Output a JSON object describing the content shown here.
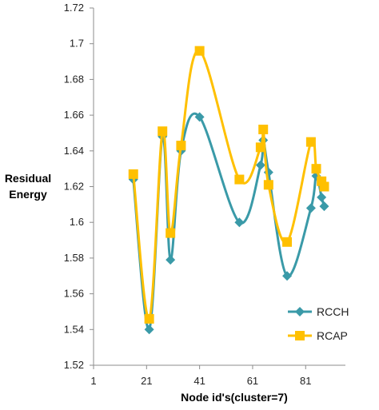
{
  "chart_data": {
    "type": "line",
    "xlabel": "Node id's(cluster=7)",
    "ylabel_lines": [
      "Residual",
      "Energy"
    ],
    "xlim": [
      1,
      96
    ],
    "ylim": [
      1.52,
      1.72
    ],
    "x_ticks": [
      1,
      21,
      41,
      61,
      81
    ],
    "y_ticks": [
      1.52,
      1.54,
      1.56,
      1.58,
      1.6,
      1.62,
      1.64,
      1.66,
      1.68,
      1.7,
      1.72
    ],
    "y_tick_labels": [
      "1.52",
      "1.54",
      "1.56",
      "1.58",
      "1.6",
      "1.62",
      "1.64",
      "1.66",
      "1.68",
      "1.7",
      "1.72"
    ],
    "grid": false,
    "legend_position": "bottom-right",
    "series": [
      {
        "name": "RCCH",
        "color": "#3a9aa8",
        "marker": "diamond",
        "x": [
          16,
          22,
          27,
          30,
          34,
          41,
          56,
          64,
          65,
          67,
          74,
          83,
          85,
          87,
          88
        ],
        "y": [
          1.624,
          1.54,
          1.648,
          1.579,
          1.64,
          1.659,
          1.6,
          1.632,
          1.646,
          1.628,
          1.57,
          1.608,
          1.626,
          1.614,
          1.609
        ]
      },
      {
        "name": "RCAP",
        "color": "#ffc000",
        "marker": "square",
        "x": [
          16,
          22,
          27,
          30,
          34,
          41,
          56,
          64,
          65,
          67,
          74,
          83,
          85,
          87,
          88
        ],
        "y": [
          1.627,
          1.546,
          1.651,
          1.594,
          1.643,
          1.696,
          1.624,
          1.642,
          1.652,
          1.621,
          1.589,
          1.645,
          1.63,
          1.623,
          1.62
        ]
      }
    ]
  }
}
